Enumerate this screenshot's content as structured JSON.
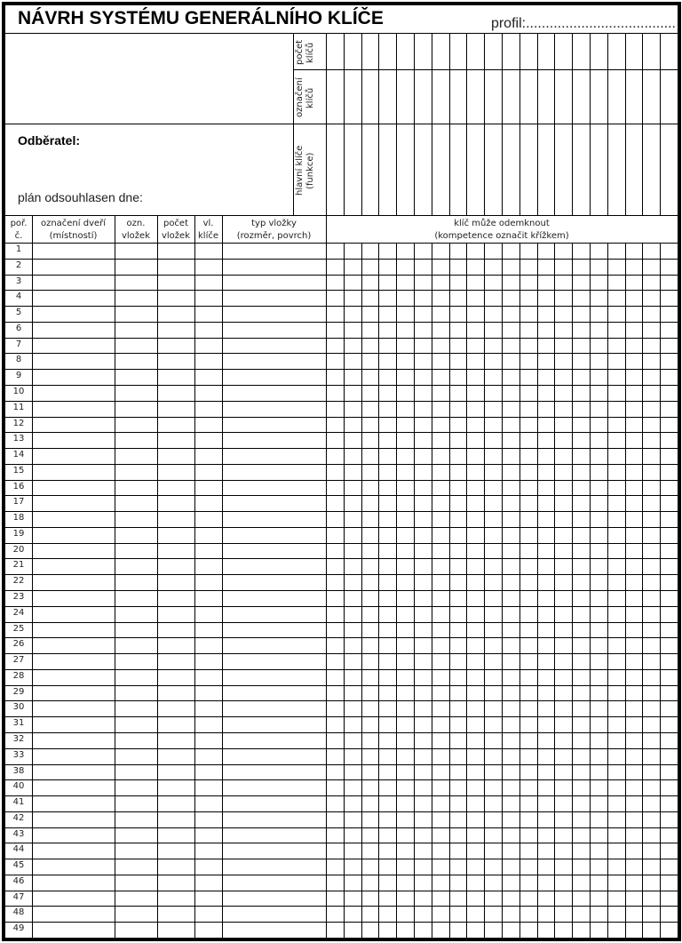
{
  "title": "NÁVRH SYSTÉMU GENERÁLNÍHO KLÍČE",
  "profil": "profil:......................................",
  "top_section": {
    "key_count_label": [
      "počet",
      "klíčů"
    ],
    "key_mark_label": [
      "označení",
      "klíčů"
    ],
    "master_keys_label": [
      "hlavní klíče",
      "(funkce)"
    ],
    "customer_label": "Odběratel:",
    "approved_label": "plán odsouhlasen dne:"
  },
  "table": {
    "headers": [
      [
        "poř.",
        "č."
      ],
      [
        "označení dveří",
        "(místností)"
      ],
      [
        "ozn.",
        "vložek"
      ],
      [
        "počet",
        "vložek"
      ],
      [
        "vl.",
        "klíče"
      ],
      [
        "typ vložky",
        "(rozměr, povrch)"
      ],
      [
        "klíč může odemknout",
        "(kompetence označit křížkem)"
      ]
    ],
    "key_columns": 20,
    "row_numbers": [
      "1",
      "2",
      "3",
      "4",
      "5",
      "6",
      "7",
      "8",
      "9",
      "10",
      "11",
      "12",
      "13",
      "14",
      "15",
      "16",
      "17",
      "18",
      "19",
      "20",
      "21",
      "22",
      "23",
      "24",
      "25",
      "26",
      "27",
      "28",
      "29",
      "30",
      "31",
      "32",
      "33",
      "38",
      "40",
      "41",
      "42",
      "43",
      "44",
      "45",
      "46",
      "47",
      "48",
      "49"
    ]
  }
}
